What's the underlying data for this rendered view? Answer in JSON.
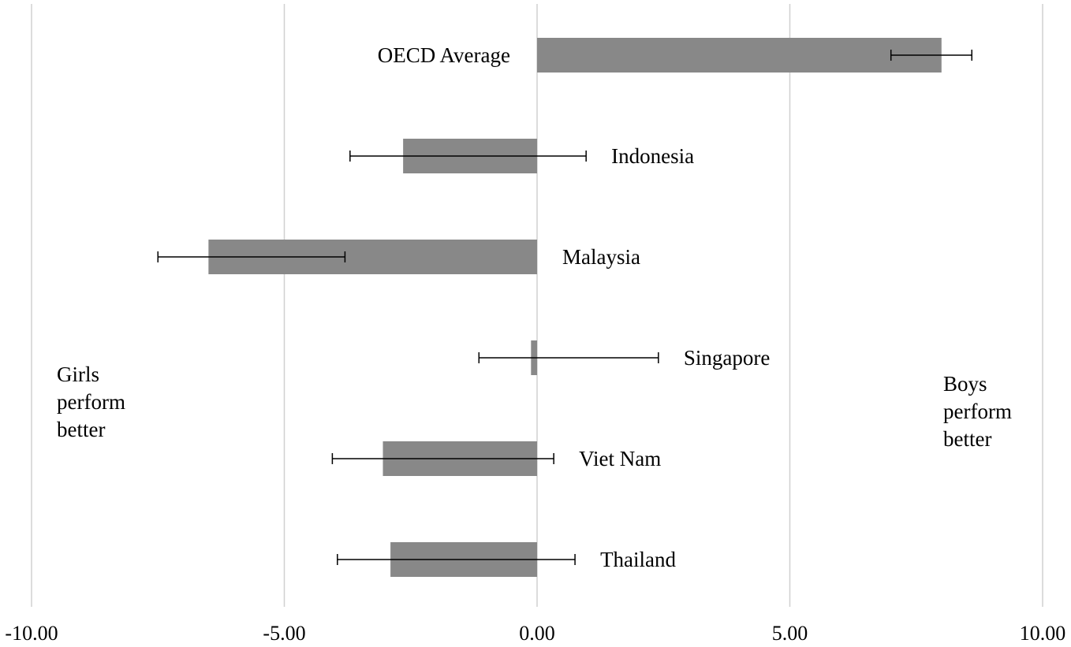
{
  "chart_data": {
    "type": "bar",
    "orientation": "horizontal",
    "categories": [
      "OECD Average",
      "Indonesia",
      "Malaysia",
      "Singapore",
      "Viet Nam",
      "Thailand"
    ],
    "series": [
      {
        "values": [
          8.0,
          -2.65,
          -6.5,
          -0.12,
          -3.05,
          -2.9
        ],
        "error_low": [
          7.0,
          -3.7,
          -7.5,
          -1.15,
          -4.05,
          -3.95
        ],
        "error_high": [
          8.6,
          0.97,
          -3.8,
          2.4,
          0.33,
          0.75
        ]
      }
    ],
    "title": "",
    "xlabel": "",
    "ylabel": "",
    "xlim": [
      -10,
      10
    ],
    "xticks": [
      -10,
      -5,
      0,
      5,
      10
    ],
    "xtick_labels": [
      "-10.00",
      "-5.00",
      "0.00",
      "5.00",
      "10.00"
    ],
    "grid": "vertical",
    "bar_color": "#888888",
    "annotations": {
      "left": [
        "Girls",
        "perform",
        "better"
      ],
      "right": [
        "Boys",
        "perform",
        "better"
      ]
    }
  }
}
